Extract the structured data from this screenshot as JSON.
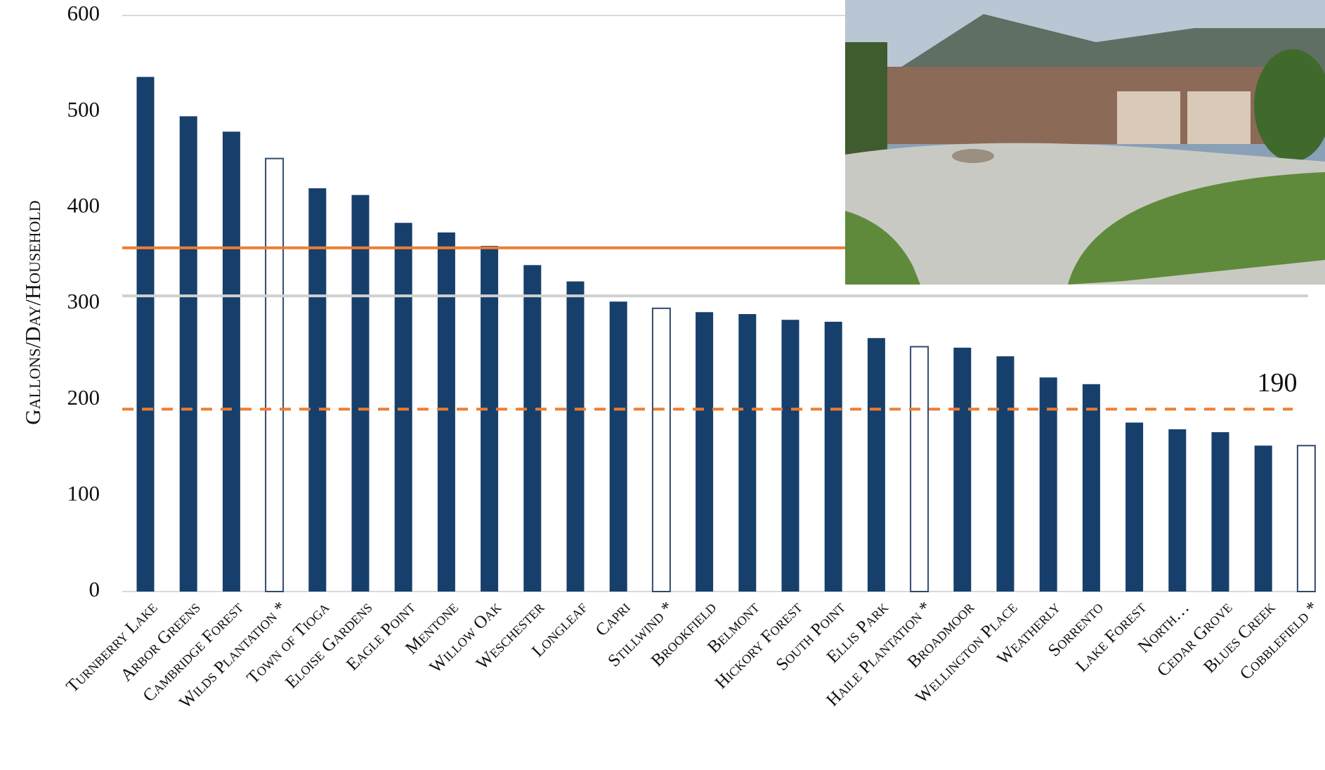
{
  "chart_data": {
    "type": "bar",
    "y_label": "Gallons/Day/Household",
    "categories": [
      "Turnberry Lake",
      "Arbor Greens",
      "Cambridge Forest",
      "Wilds Plantation *",
      "Town of Tioga",
      "Eloise Gardens",
      "Eagle Point",
      "Mentone",
      "Willow Oak",
      "Weschester",
      "Longleaf",
      "Capri",
      "Stillwind *",
      "Brookfield",
      "Belmont",
      "Hickory Forest",
      "South Point",
      "Ellis Park",
      "Haile Plantation *",
      "Broadmoor",
      "Wellington Place",
      "Weatherly",
      "Sorrento",
      "Lake Forest",
      "North…",
      "Cedar Grove",
      "Blues Creek",
      "Cobblefield *"
    ],
    "values": [
      536,
      495,
      479,
      451,
      420,
      413,
      384,
      374,
      360,
      340,
      323,
      302,
      295,
      291,
      289,
      283,
      281,
      264,
      255,
      254,
      245,
      223,
      216,
      176,
      169,
      166,
      152,
      152
    ],
    "colors": [
      "#173f6b",
      "#173f6b",
      "#173f6b",
      "none",
      "#173f6b",
      "#173f6b",
      "#173f6b",
      "#173f6b",
      "#173f6b",
      "#173f6b",
      "#173f6b",
      "#173f6b",
      "none",
      "#173f6b",
      "#173f6b",
      "#173f6b",
      "#173f6b",
      "#173f6b",
      "none",
      "#173f6b",
      "#173f6b",
      "#173f6b",
      "#173f6b",
      "#173f6b",
      "#173f6b",
      "#173f6b",
      "#173f6b",
      "none"
    ],
    "outline_color": "#2f4a6b",
    "ylim": [
      0,
      600
    ],
    "yticks": [
      0,
      100,
      200,
      300,
      400,
      500,
      600
    ],
    "reference_lines": [
      {
        "value": 308,
        "color": "#d0d0d0",
        "style": "solid"
      },
      {
        "value": 358,
        "color": "#ed7d31",
        "style": "solid"
      },
      {
        "value": 190,
        "color": "#ed7d31",
        "style": "dashed",
        "labeled": true
      }
    ]
  }
}
